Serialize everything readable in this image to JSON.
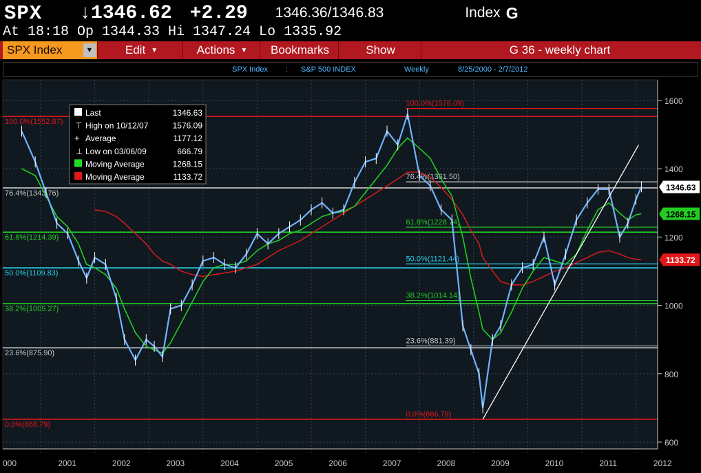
{
  "header": {
    "ticker": "SPX",
    "last_price": "↓1346.62",
    "change": "+2.29",
    "bid_ask": "1346.36/1346.83",
    "type_label": "Index",
    "type_key": "G",
    "time_line": "At 18:18  Op 1344.33 Hi 1347.24 Lo 1335.92"
  },
  "toolbar": {
    "security": "SPX Index",
    "edit": "Edit",
    "actions": "Actions",
    "bookmarks": "Bookmarks",
    "show": "Show",
    "chart_title": "G 36 - weekly chart"
  },
  "info_bar": {
    "security": "SPX Index",
    "sep": ":",
    "name": "S&P 500 INDEX",
    "period": "Weekly",
    "range": "8/25/2000 - 2/7/2012"
  },
  "legend": {
    "rows": [
      {
        "label": "Last",
        "value": "1346.63",
        "marker": "square",
        "color": "#ffffff"
      },
      {
        "label": "High on 10/12/07",
        "value": "1576.09",
        "marker": "high",
        "color": "#ffffff"
      },
      {
        "label": "Average",
        "value": "1177.12",
        "marker": "avg",
        "color": "#ffffff"
      },
      {
        "label": "Low on 03/06/09",
        "value": "666.79",
        "marker": "low",
        "color": "#ffffff"
      },
      {
        "label": "Moving Average",
        "value": "1268.15",
        "marker": "square",
        "color": "#22dd22"
      },
      {
        "label": "Moving Average",
        "value": "1133.72",
        "marker": "square",
        "color": "#e01818"
      }
    ]
  },
  "colors": {
    "price": "#6fb3ff",
    "ma_short": "#22cc22",
    "ma_long": "#cc1c1c",
    "axis": "#c8c8c8"
  },
  "chart_data": {
    "type": "line",
    "x": [
      2000.65,
      2000.9,
      2001.1,
      2001.3,
      2001.5,
      2001.7,
      2001.85,
      2002.0,
      2002.2,
      2002.4,
      2002.55,
      2002.75,
      2002.95,
      2003.1,
      2003.25,
      2003.4,
      2003.6,
      2003.8,
      2004.0,
      2004.2,
      2004.4,
      2004.6,
      2004.8,
      2005.0,
      2005.2,
      2005.4,
      2005.6,
      2005.8,
      2006.0,
      2006.2,
      2006.4,
      2006.6,
      2006.8,
      2007.0,
      2007.2,
      2007.4,
      2007.6,
      2007.78,
      2008.0,
      2008.2,
      2008.4,
      2008.6,
      2008.8,
      2008.95,
      2009.1,
      2009.17,
      2009.35,
      2009.5,
      2009.7,
      2009.9,
      2010.1,
      2010.3,
      2010.5,
      2010.7,
      2010.9,
      2011.1,
      2011.3,
      2011.5,
      2011.7,
      2011.85,
      2012.0,
      2012.1
    ],
    "series": [
      {
        "values": [
          1510,
          1420,
          1330,
          1240,
          1210,
          1130,
          1080,
          1140,
          1120,
          1020,
          900,
          840,
          900,
          880,
          850,
          990,
          1000,
          1060,
          1130,
          1140,
          1120,
          1110,
          1150,
          1210,
          1180,
          1210,
          1230,
          1250,
          1280,
          1300,
          1270,
          1280,
          1360,
          1420,
          1430,
          1510,
          1470,
          1560,
          1380,
          1350,
          1280,
          1250,
          940,
          870,
          800,
          700,
          900,
          940,
          1060,
          1110,
          1120,
          1200,
          1060,
          1150,
          1250,
          1300,
          1340,
          1340,
          1200,
          1240,
          1310,
          1347
        ]
      },
      {
        "values": [
          1400,
          1380,
          1320,
          1260,
          1230,
          1180,
          1120,
          1110,
          1090,
          1050,
          990,
          920,
          880,
          870,
          860,
          890,
          950,
          1010,
          1070,
          1110,
          1120,
          1120,
          1130,
          1160,
          1180,
          1190,
          1210,
          1220,
          1240,
          1260,
          1270,
          1275,
          1290,
          1330,
          1370,
          1410,
          1460,
          1490,
          1460,
          1430,
          1370,
          1320,
          1200,
          1080,
          980,
          930,
          900,
          920,
          980,
          1050,
          1100,
          1140,
          1130,
          1120,
          1150,
          1220,
          1280,
          1300,
          1270,
          1250,
          1265,
          1268
        ]
      },
      {
        "values": [
          null,
          null,
          null,
          null,
          null,
          null,
          null,
          1280,
          1275,
          1260,
          1240,
          1210,
          1180,
          1150,
          1130,
          1120,
          1100,
          1090,
          1085,
          1090,
          1095,
          1100,
          1110,
          1120,
          1140,
          1160,
          1175,
          1190,
          1210,
          1230,
          1250,
          1270,
          1290,
          1310,
          1330,
          1350,
          1370,
          1390,
          1390,
          1375,
          1345,
          1310,
          1265,
          1220,
          1180,
          1140,
          1100,
          1070,
          1060,
          1060,
          1070,
          1085,
          1100,
          1110,
          1125,
          1140,
          1155,
          1160,
          1150,
          1140,
          1135,
          1134
        ]
      }
    ],
    "y_ticks": [
      600,
      800,
      1000,
      1200,
      1400,
      1600
    ],
    "ylim": [
      580,
      1660
    ],
    "x_ticks": [
      "000",
      "2001",
      "2002",
      "2003",
      "2004",
      "2005",
      "2006",
      "2007",
      "2008",
      "2009",
      "2010",
      "2011",
      "2012"
    ],
    "xlim": [
      2000.3,
      2012.4
    ],
    "fib_left": [
      {
        "label": "100.0%(1552.87)",
        "value": 1552.87,
        "color": "#e01818"
      },
      {
        "label": "76.4%(1343.76)",
        "value": 1343.76,
        "color": "#c8c8c8"
      },
      {
        "label": "61.8%(1214.39)",
        "value": 1214.39,
        "color": "#22cc22"
      },
      {
        "label": "50.0%(1109.83)",
        "value": 1109.83,
        "color": "#28d0e8"
      },
      {
        "label": "38.2%(1005.27)",
        "value": 1005.27,
        "color": "#22cc22"
      },
      {
        "label": "23.6%(875.90)",
        "value": 875.9,
        "color": "#c8c8c8"
      },
      {
        "label": "0.0%(666.79)",
        "value": 666.79,
        "color": "#e01818"
      }
    ],
    "fib_right": [
      {
        "label": "100.0%(1576.09)",
        "value": 1576.09,
        "color": "#e01818"
      },
      {
        "label": "76.4%(1361.50)",
        "value": 1361.5,
        "color": "#c8c8c8"
      },
      {
        "label": "61.8%(1228.74)",
        "value": 1228.74,
        "color": "#22cc22"
      },
      {
        "label": "50.0%(1121.44)",
        "value": 1121.44,
        "color": "#28d0e8"
      },
      {
        "label": "38.2%(1014.14)",
        "value": 1014.14,
        "color": "#22cc22"
      },
      {
        "label": "23.6%(881.39)",
        "value": 881.39,
        "color": "#c8c8c8"
      },
      {
        "label": "0.0%(666.79)",
        "value": 666.79,
        "color": "#e01818"
      }
    ],
    "trendline": {
      "x": [
        2009.17,
        2012.05
      ],
      "y": [
        666.79,
        1470
      ]
    },
    "right_tags": [
      {
        "label": "1346.63",
        "value": 1346.63,
        "bg": "#ffffff",
        "fg": "#000000"
      },
      {
        "label": "1268.15",
        "value": 1268.15,
        "bg": "#22cc22",
        "fg": "#000000"
      },
      {
        "label": "1133.72",
        "value": 1133.72,
        "bg": "#e01818",
        "fg": "#ffffff"
      }
    ]
  }
}
